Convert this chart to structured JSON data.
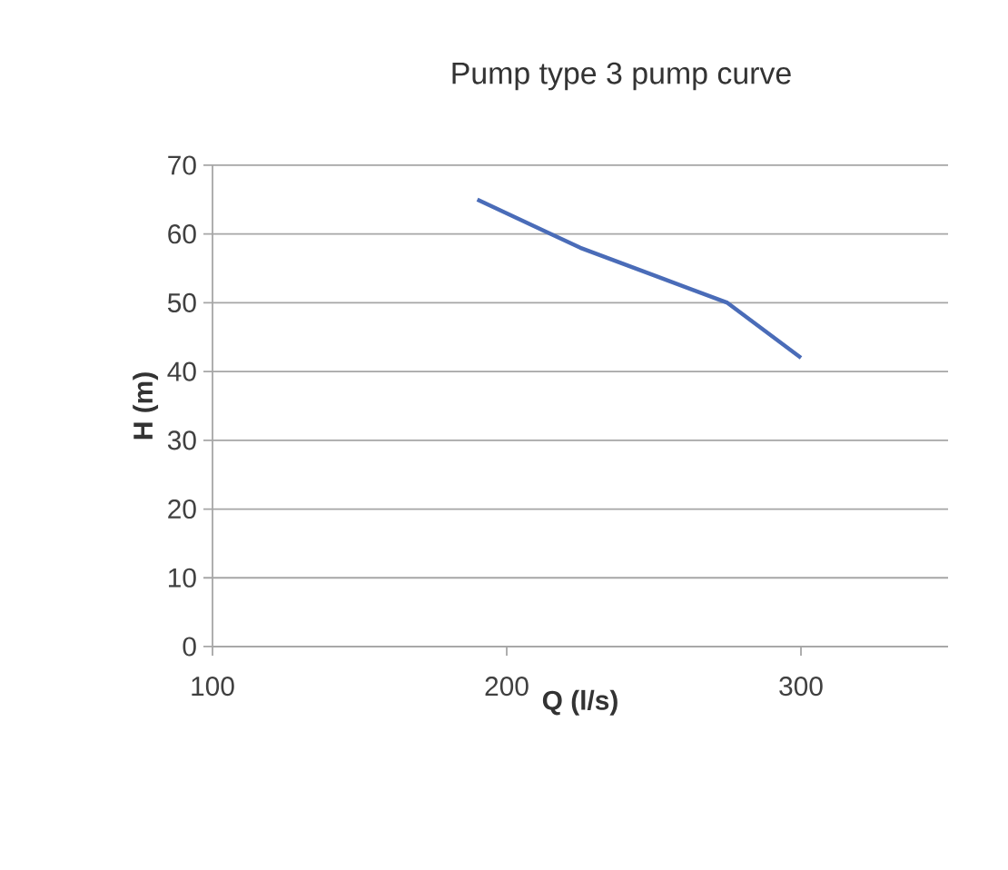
{
  "chart_data": {
    "type": "line",
    "title": "Pump type 3 pump curve",
    "xlabel": "Q (l/s)",
    "ylabel": "H (m)",
    "x": [
      190,
      225,
      250,
      275,
      300
    ],
    "series": [
      {
        "color": "#4a6cb8",
        "values": [
          65,
          58,
          54,
          50,
          42
        ]
      }
    ],
    "xlim": [
      100,
      350
    ],
    "xticks": [
      100,
      200,
      300
    ],
    "ylim": [
      0,
      70
    ],
    "yticks": [
      0,
      10,
      20,
      30,
      40,
      50,
      60,
      70
    ],
    "grid": "y",
    "marker": "none",
    "line_style": "solid"
  }
}
